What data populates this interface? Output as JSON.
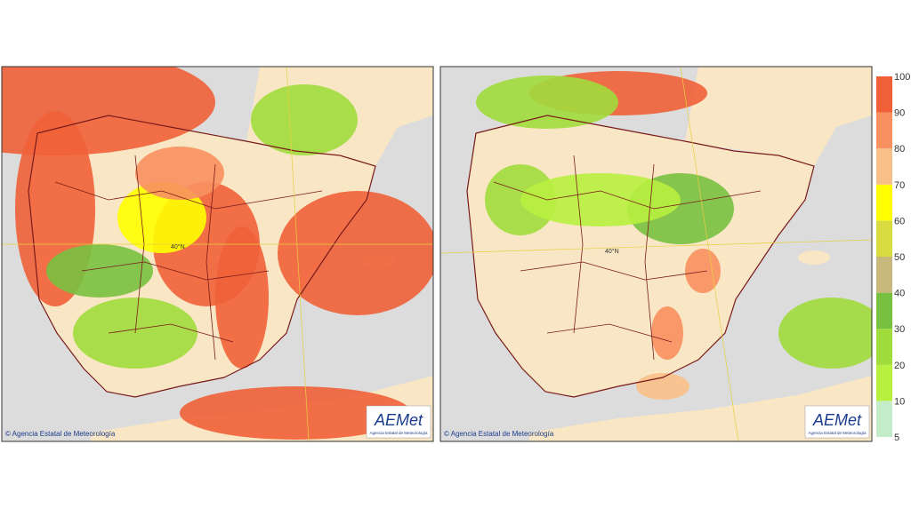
{
  "maps": [
    {
      "copyright": "© Agencia Estatal de Meteorología",
      "logo": "AEMet",
      "logo_subtitle": "Agencia Estatal de Meteorología",
      "latitude_label": "40°N"
    },
    {
      "copyright": "© Agencia Estatal de Meteorología",
      "logo": "AEMet",
      "logo_subtitle": "Agencia Estatal de Meteorología",
      "latitude_label": "40°N"
    }
  ],
  "legend": {
    "ticks": [
      5,
      10,
      20,
      30,
      40,
      50,
      60,
      70,
      80,
      90,
      100
    ],
    "colors": [
      "#c4ecc8",
      "#b8f040",
      "#a0dc3c",
      "#78c040",
      "#c8b87c",
      "#d8dc40",
      "#ffff00",
      "#f8c088",
      "#f89060",
      "#f06038"
    ]
  }
}
